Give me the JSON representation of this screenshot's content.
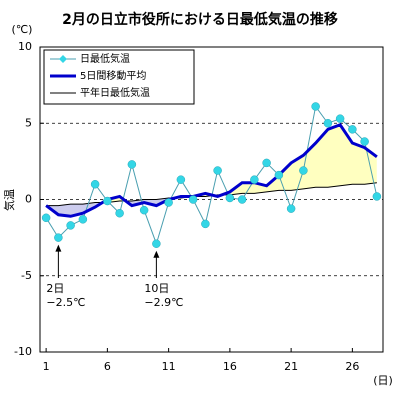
{
  "chart_data": {
    "type": "line",
    "title": "2月の日立市役所における日最低気温の推移",
    "y_unit": "(℃)",
    "y_label": "気温",
    "x_unit": "(日)",
    "x": [
      1,
      2,
      3,
      4,
      5,
      6,
      7,
      8,
      9,
      10,
      11,
      12,
      13,
      14,
      15,
      16,
      17,
      18,
      19,
      20,
      21,
      22,
      23,
      24,
      25,
      26,
      27,
      28
    ],
    "xlim": [
      0.5,
      28.5
    ],
    "xticks": [
      1,
      6,
      11,
      16,
      21,
      26
    ],
    "ylim": [
      -10,
      10
    ],
    "yticks": [
      -10,
      -5,
      0,
      5,
      10
    ],
    "grid": true,
    "legend": "top-left",
    "series": [
      {
        "name": "日最低気温",
        "color": "#33d6e6",
        "line_color": "#4a9fb0",
        "values": [
          -1.2,
          -2.5,
          -1.7,
          -1.3,
          1.0,
          -0.1,
          -0.9,
          2.3,
          -0.7,
          -2.9,
          -0.2,
          1.3,
          0.0,
          -1.6,
          1.9,
          0.1,
          0.0,
          1.3,
          2.4,
          1.6,
          -0.6,
          1.9,
          6.1,
          5.0,
          5.3,
          4.6,
          3.8,
          0.2
        ]
      },
      {
        "name": "5日間移動平均",
        "color": "#0000cc",
        "values": [
          -0.4,
          -1.0,
          -1.1,
          -0.9,
          -0.5,
          0.0,
          0.2,
          -0.4,
          -0.2,
          -0.4,
          0.0,
          0.2,
          0.2,
          0.4,
          0.2,
          0.5,
          1.1,
          1.1,
          0.9,
          1.6,
          2.4,
          2.9,
          3.7,
          4.6,
          4.9,
          3.7,
          3.4,
          2.8
        ]
      },
      {
        "name": "平年日最低気温",
        "color": "#000000",
        "values": [
          -0.4,
          -0.4,
          -0.3,
          -0.3,
          -0.2,
          -0.2,
          -0.1,
          -0.1,
          0.0,
          0.0,
          0.1,
          0.1,
          0.2,
          0.2,
          0.3,
          0.3,
          0.4,
          0.4,
          0.5,
          0.6,
          0.6,
          0.7,
          0.8,
          0.8,
          0.9,
          1.0,
          1.0,
          1.1
        ]
      }
    ],
    "fill_above": "#ffffc0",
    "fill_below": "#ccccee",
    "annotations": [
      {
        "x": 2,
        "lines": [
          "2日",
          "−2.5℃"
        ]
      },
      {
        "x": 10,
        "lines": [
          "10日",
          "−2.9℃"
        ]
      }
    ]
  }
}
